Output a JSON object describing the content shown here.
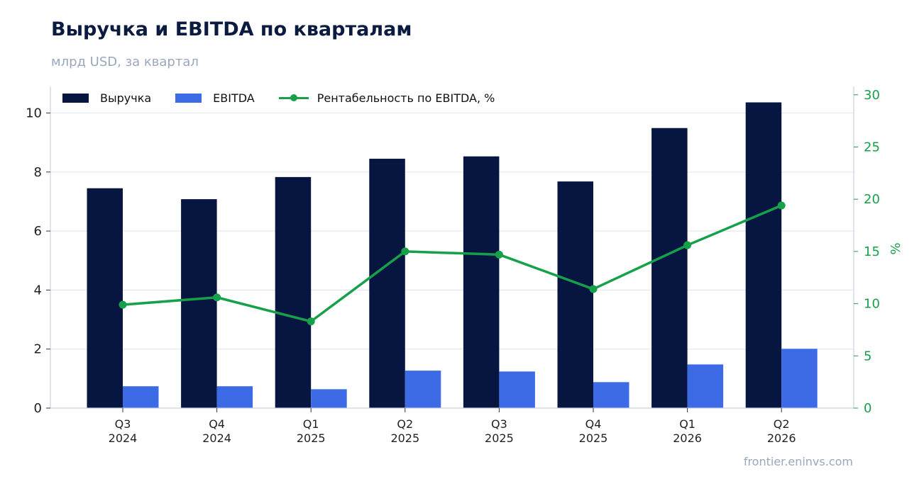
{
  "header": {
    "title": "Выручка и EBITDA по кварталам",
    "subtitle": "млрд USD, за квартал"
  },
  "footer": {
    "source": "frontier.eninvs.com"
  },
  "colors": {
    "revenue": "#061640",
    "ebitda": "#3d6be6",
    "margin": "#16a04a",
    "grid": "#e3e7f0",
    "axis": "#c9d0e0",
    "text": "#222222"
  },
  "chart_data": {
    "type": "bar",
    "categories": [
      [
        "Q3",
        "2024"
      ],
      [
        "Q4",
        "2024"
      ],
      [
        "Q1",
        "2025"
      ],
      [
        "Q2",
        "2025"
      ],
      [
        "Q3",
        "2025"
      ],
      [
        "Q4",
        "2025"
      ],
      [
        "Q1",
        "2026"
      ],
      [
        "Q2",
        "2026"
      ]
    ],
    "series": [
      {
        "name": "Выручка",
        "type": "bar",
        "axis": "left",
        "values": [
          7.45,
          7.08,
          7.83,
          8.45,
          8.53,
          7.68,
          9.49,
          10.36
        ]
      },
      {
        "name": "EBITDA",
        "type": "bar",
        "axis": "left",
        "values": [
          0.74,
          0.74,
          0.64,
          1.27,
          1.24,
          0.88,
          1.48,
          2.01
        ]
      },
      {
        "name": "Рентабельность по EBITDA, %",
        "type": "line",
        "axis": "right",
        "values": [
          9.9,
          10.6,
          8.3,
          15.0,
          14.7,
          11.4,
          15.6,
          19.4
        ]
      }
    ],
    "ylim": [
      0,
      10.9
    ],
    "y_ticks": [
      0,
      2,
      4,
      6,
      8,
      10
    ],
    "y2lim": [
      0,
      30.8
    ],
    "y2_ticks": [
      0,
      5,
      10,
      15,
      20,
      25,
      30
    ],
    "ylabel": "",
    "y2label": "%",
    "grid": true,
    "legend_position": "top-left"
  }
}
